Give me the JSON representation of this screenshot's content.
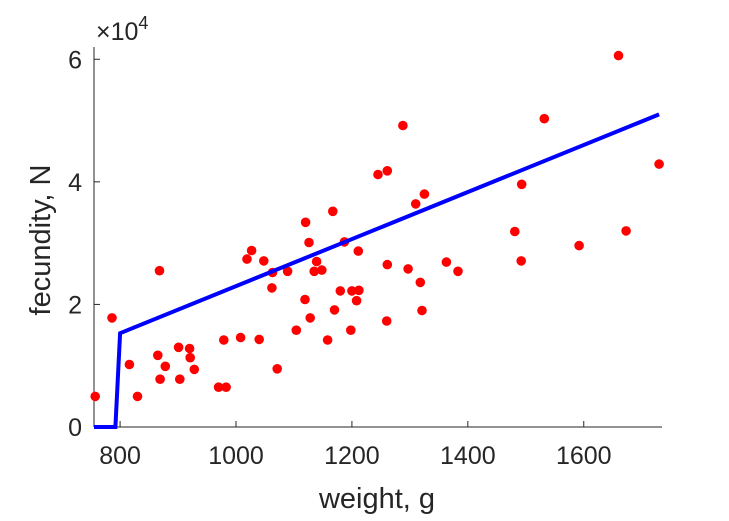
{
  "chart_data": {
    "type": "scatter",
    "xlabel": "weight, g",
    "ylabel": "fecundity, N",
    "xlim": [
      755,
      1735
    ],
    "ylim": [
      0,
      62000
    ],
    "xticks": [
      800,
      1000,
      1200,
      1400,
      1600
    ],
    "yticks": [
      0,
      20000,
      40000,
      60000
    ],
    "ytick_labels": [
      "0",
      "2",
      "4",
      "6"
    ],
    "y_multiplier": {
      "base": "×10",
      "exponent": "4"
    },
    "grid": false,
    "series": [
      {
        "kind": "scatter",
        "color": "#ff0000",
        "points": [
          [
            757,
            5000
          ],
          [
            786,
            17800
          ],
          [
            816,
            10200
          ],
          [
            830,
            5000
          ],
          [
            865,
            11700
          ],
          [
            868,
            25500
          ],
          [
            869,
            7800
          ],
          [
            878,
            9900
          ],
          [
            901,
            13000
          ],
          [
            903,
            7800
          ],
          [
            920,
            12800
          ],
          [
            921,
            11300
          ],
          [
            928,
            9400
          ],
          [
            970,
            6500
          ],
          [
            979,
            14200
          ],
          [
            983,
            6500
          ],
          [
            1008,
            14600
          ],
          [
            1019,
            27400
          ],
          [
            1027,
            28800
          ],
          [
            1040,
            14300
          ],
          [
            1048,
            27100
          ],
          [
            1062,
            22700
          ],
          [
            1063,
            25200
          ],
          [
            1071,
            9500
          ],
          [
            1089,
            25400
          ],
          [
            1104,
            15800
          ],
          [
            1119,
            20800
          ],
          [
            1120,
            33400
          ],
          [
            1126,
            30100
          ],
          [
            1128,
            17800
          ],
          [
            1135,
            25400
          ],
          [
            1139,
            27000
          ],
          [
            1148,
            25600
          ],
          [
            1158,
            14200
          ],
          [
            1167,
            35200
          ],
          [
            1170,
            19100
          ],
          [
            1180,
            22200
          ],
          [
            1187,
            30200
          ],
          [
            1198,
            15800
          ],
          [
            1200,
            22200
          ],
          [
            1208,
            20600
          ],
          [
            1211,
            28700
          ],
          [
            1212,
            22300
          ],
          [
            1245,
            41200
          ],
          [
            1260,
            17300
          ],
          [
            1261,
            41800
          ],
          [
            1261,
            26500
          ],
          [
            1288,
            49200
          ],
          [
            1297,
            25800
          ],
          [
            1310,
            36400
          ],
          [
            1318,
            23600
          ],
          [
            1321,
            19000
          ],
          [
            1325,
            38000
          ],
          [
            1363,
            26900
          ],
          [
            1383,
            25400
          ],
          [
            1481,
            31900
          ],
          [
            1492,
            27100
          ],
          [
            1493,
            39600
          ],
          [
            1532,
            50300
          ],
          [
            1592,
            29600
          ],
          [
            1660,
            60600
          ],
          [
            1673,
            32000
          ],
          [
            1730,
            42900
          ]
        ]
      },
      {
        "kind": "line",
        "color": "#0000ff",
        "points": [
          [
            755,
            0
          ],
          [
            792,
            0
          ],
          [
            800,
            15300
          ],
          [
            1730,
            51000
          ]
        ]
      }
    ]
  }
}
